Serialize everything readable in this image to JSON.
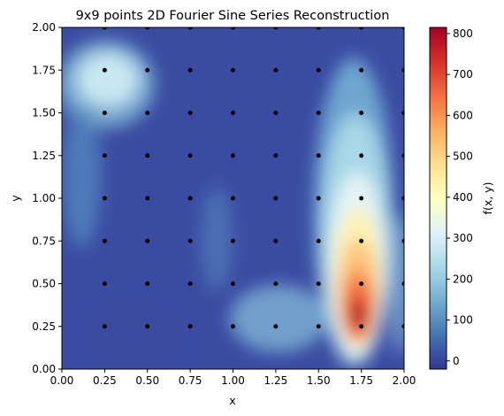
{
  "chart_data": {
    "type": "heatmap",
    "title": "9x9 points 2D Fourier Sine Series Reconstruction",
    "xlabel": "x",
    "ylabel": "y",
    "xlim": [
      0,
      2
    ],
    "ylim": [
      0,
      2
    ],
    "x_ticks": [
      "0.00",
      "0.25",
      "0.50",
      "0.75",
      "1.00",
      "1.25",
      "1.50",
      "1.75",
      "2.00"
    ],
    "y_ticks": [
      "0.00",
      "0.25",
      "0.50",
      "0.75",
      "1.00",
      "1.25",
      "1.50",
      "1.75",
      "2.00"
    ],
    "colorbar": {
      "label": "f(x, y)",
      "range": [
        -20,
        815
      ],
      "ticks": [
        "0",
        "100",
        "200",
        "300",
        "400",
        "500",
        "600",
        "700",
        "800"
      ],
      "colormap": "RdYlBu_r"
    },
    "sample_points": {
      "x": [
        0.25,
        0.5,
        0.75,
        1.0,
        1.25,
        1.5,
        1.75,
        2.0
      ],
      "y": [
        0.25,
        0.5,
        0.75,
        1.0,
        1.25,
        1.5,
        1.75,
        2.0
      ],
      "color": "#000000"
    },
    "features": [
      {
        "x": 1.75,
        "y": 0.3,
        "value": 810
      },
      {
        "x": 0.3,
        "y": 1.7,
        "value": 270
      }
    ],
    "grid": false,
    "legend": "none"
  }
}
